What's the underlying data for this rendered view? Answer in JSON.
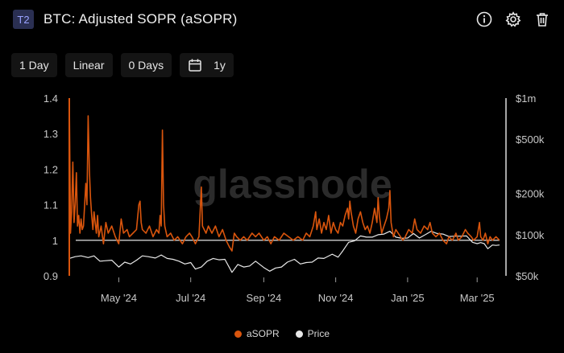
{
  "header": {
    "badge": "T2",
    "title": "BTC: Adjusted SOPR (aSOPR)",
    "icons": [
      "info-icon",
      "gear-icon",
      "trash-icon"
    ]
  },
  "toolbar": {
    "resolution": "1 Day",
    "scale": "Linear",
    "sma": "0 Days",
    "range": "1y"
  },
  "watermark": "glassnode",
  "colors": {
    "sopr": "#d9550d",
    "price": "#e8e8e8",
    "ref_line": "#cfcfcf"
  },
  "chart_data": {
    "type": "line",
    "x_range": [
      "2024-03-20",
      "2025-03-20"
    ],
    "x_ticks": [
      {
        "date": "2024-05-01",
        "label": "May '24"
      },
      {
        "date": "2024-07-01",
        "label": "Jul '24"
      },
      {
        "date": "2024-09-01",
        "label": "Sep '24"
      },
      {
        "date": "2024-11-01",
        "label": "Nov '24"
      },
      {
        "date": "2025-01-01",
        "label": "Jan '25"
      },
      {
        "date": "2025-03-01",
        "label": "Mar '25"
      }
    ],
    "y_left": {
      "range": [
        0.9,
        1.4
      ],
      "ticks": [
        0.9,
        1,
        1.1,
        1.2,
        1.3,
        1.4
      ],
      "labels": [
        "0.9",
        "1",
        "1.1",
        "1.2",
        "1.3",
        "1.4"
      ]
    },
    "y_right": {
      "scale": "log",
      "range": [
        50000,
        1000000
      ],
      "ticks": [
        50000,
        100000,
        200000,
        500000,
        1000000
      ],
      "labels": [
        "$50k",
        "$100k",
        "$200k",
        "$500k",
        "$1m"
      ]
    },
    "reference_line": 1,
    "series": [
      {
        "name": "aSOPR",
        "axis": "left",
        "points": [
          [
            "2024-03-20",
            1.4
          ],
          [
            "2024-03-21",
            1.02
          ],
          [
            "2024-03-22",
            1.08
          ],
          [
            "2024-03-23",
            1.22
          ],
          [
            "2024-03-24",
            1.05
          ],
          [
            "2024-03-25",
            1.1
          ],
          [
            "2024-03-26",
            1.19
          ],
          [
            "2024-03-27",
            1.04
          ],
          [
            "2024-03-28",
            1.07
          ],
          [
            "2024-03-29",
            1.02
          ],
          [
            "2024-03-30",
            1.06
          ],
          [
            "2024-03-31",
            1.03
          ],
          [
            "2024-04-01",
            1.04
          ],
          [
            "2024-04-03",
            1.16
          ],
          [
            "2024-04-04",
            1.1
          ],
          [
            "2024-04-05",
            1.35
          ],
          [
            "2024-04-06",
            1.2
          ],
          [
            "2024-04-07",
            1.12
          ],
          [
            "2024-04-08",
            1.07
          ],
          [
            "2024-04-09",
            1.03
          ],
          [
            "2024-04-10",
            1.08
          ],
          [
            "2024-04-12",
            1.02
          ],
          [
            "2024-04-13",
            1.07
          ],
          [
            "2024-04-14",
            1.01
          ],
          [
            "2024-04-16",
            1.04
          ],
          [
            "2024-04-18",
            0.99
          ],
          [
            "2024-04-20",
            1.05
          ],
          [
            "2024-04-22",
            1.02
          ],
          [
            "2024-04-25",
            1.04
          ],
          [
            "2024-04-28",
            1.01
          ],
          [
            "2024-05-01",
            0.99
          ],
          [
            "2024-05-03",
            1.06
          ],
          [
            "2024-05-05",
            1.02
          ],
          [
            "2024-05-08",
            1.03
          ],
          [
            "2024-05-10",
            1.01
          ],
          [
            "2024-05-13",
            1.02
          ],
          [
            "2024-05-16",
            1.03
          ],
          [
            "2024-05-18",
            1.1
          ],
          [
            "2024-05-19",
            1.11
          ],
          [
            "2024-05-20",
            1.05
          ],
          [
            "2024-05-21",
            1.03
          ],
          [
            "2024-05-24",
            1.02
          ],
          [
            "2024-05-27",
            1.04
          ],
          [
            "2024-05-30",
            1.01
          ],
          [
            "2024-06-02",
            1.03
          ],
          [
            "2024-06-04",
            1.02
          ],
          [
            "2024-06-05",
            1.07
          ],
          [
            "2024-06-06",
            1.04
          ],
          [
            "2024-06-07",
            1.31
          ],
          [
            "2024-06-08",
            1.1
          ],
          [
            "2024-06-09",
            1.04
          ],
          [
            "2024-06-11",
            1.01
          ],
          [
            "2024-06-14",
            1.02
          ],
          [
            "2024-06-17",
            1.0
          ],
          [
            "2024-06-20",
            1.01
          ],
          [
            "2024-06-24",
            0.99
          ],
          [
            "2024-06-27",
            1.01
          ],
          [
            "2024-06-30",
            1.02
          ],
          [
            "2024-07-02",
            1.01
          ],
          [
            "2024-07-05",
            0.99
          ],
          [
            "2024-07-08",
            1.01
          ],
          [
            "2024-07-10",
            1.15
          ],
          [
            "2024-07-11",
            1.04
          ],
          [
            "2024-07-14",
            1.02
          ],
          [
            "2024-07-16",
            1.04
          ],
          [
            "2024-07-19",
            1.02
          ],
          [
            "2024-07-22",
            1.04
          ],
          [
            "2024-07-25",
            1.01
          ],
          [
            "2024-07-28",
            1.03
          ],
          [
            "2024-07-31",
            1.0
          ],
          [
            "2024-08-03",
            0.98
          ],
          [
            "2024-08-05",
            0.97
          ],
          [
            "2024-08-07",
            1.02
          ],
          [
            "2024-08-09",
            1.01
          ],
          [
            "2024-08-12",
            1.0
          ],
          [
            "2024-08-15",
            1.01
          ],
          [
            "2024-08-18",
            1.0
          ],
          [
            "2024-08-22",
            1.02
          ],
          [
            "2024-08-25",
            1.01
          ],
          [
            "2024-08-28",
            1.02
          ],
          [
            "2024-09-01",
            1.0
          ],
          [
            "2024-09-04",
            1.01
          ],
          [
            "2024-09-07",
            0.99
          ],
          [
            "2024-09-10",
            1.01
          ],
          [
            "2024-09-14",
            1.0
          ],
          [
            "2024-09-18",
            1.02
          ],
          [
            "2024-09-22",
            1.01
          ],
          [
            "2024-09-26",
            1.0
          ],
          [
            "2024-09-30",
            1.01
          ],
          [
            "2024-10-04",
            1.0
          ],
          [
            "2024-10-07",
            1.02
          ],
          [
            "2024-10-10",
            1.01
          ],
          [
            "2024-10-13",
            1.04
          ],
          [
            "2024-10-15",
            1.08
          ],
          [
            "2024-10-16",
            1.03
          ],
          [
            "2024-10-18",
            1.06
          ],
          [
            "2024-10-20",
            1.02
          ],
          [
            "2024-10-22",
            1.05
          ],
          [
            "2024-10-24",
            1.03
          ],
          [
            "2024-10-26",
            1.07
          ],
          [
            "2024-10-28",
            1.02
          ],
          [
            "2024-10-30",
            1.05
          ],
          [
            "2024-11-01",
            1.03
          ],
          [
            "2024-11-03",
            1.02
          ],
          [
            "2024-11-05",
            1.05
          ],
          [
            "2024-11-07",
            1.04
          ],
          [
            "2024-11-09",
            1.07
          ],
          [
            "2024-11-11",
            1.09
          ],
          [
            "2024-11-12",
            1.06
          ],
          [
            "2024-11-13",
            1.11
          ],
          [
            "2024-11-14",
            1.08
          ],
          [
            "2024-11-16",
            1.04
          ],
          [
            "2024-11-18",
            1.02
          ],
          [
            "2024-11-20",
            1.06
          ],
          [
            "2024-11-22",
            1.08
          ],
          [
            "2024-11-24",
            1.05
          ],
          [
            "2024-11-26",
            1.03
          ],
          [
            "2024-11-28",
            1.04
          ],
          [
            "2024-11-30",
            1.02
          ],
          [
            "2024-12-02",
            1.05
          ],
          [
            "2024-12-04",
            1.09
          ],
          [
            "2024-12-06",
            1.05
          ],
          [
            "2024-12-07",
            1.12
          ],
          [
            "2024-12-08",
            1.07
          ],
          [
            "2024-12-10",
            1.02
          ],
          [
            "2024-12-12",
            1.04
          ],
          [
            "2024-12-14",
            1.06
          ],
          [
            "2024-12-16",
            1.09
          ],
          [
            "2024-12-17",
            1.14
          ],
          [
            "2024-12-18",
            1.05
          ],
          [
            "2024-12-20",
            1.01
          ],
          [
            "2024-12-22",
            1.03
          ],
          [
            "2024-12-24",
            1.02
          ],
          [
            "2024-12-26",
            1.01
          ],
          [
            "2024-12-28",
            1.0
          ],
          [
            "2024-12-30",
            1.01
          ],
          [
            "2025-01-02",
            1.03
          ],
          [
            "2025-01-05",
            1.02
          ],
          [
            "2025-01-07",
            1.06
          ],
          [
            "2025-01-09",
            1.03
          ],
          [
            "2025-01-12",
            1.02
          ],
          [
            "2025-01-15",
            1.04
          ],
          [
            "2025-01-18",
            1.03
          ],
          [
            "2025-01-20",
            1.05
          ],
          [
            "2025-01-22",
            1.02
          ],
          [
            "2025-01-25",
            1.01
          ],
          [
            "2025-01-28",
            1.02
          ],
          [
            "2025-01-31",
            1.0
          ],
          [
            "2025-02-03",
            0.99
          ],
          [
            "2025-02-05",
            1.01
          ],
          [
            "2025-02-08",
            1.0
          ],
          [
            "2025-02-11",
            1.02
          ],
          [
            "2025-02-13",
            1.0
          ],
          [
            "2025-02-16",
            1.01
          ],
          [
            "2025-02-19",
            1.03
          ],
          [
            "2025-02-21",
            1.02
          ],
          [
            "2025-02-24",
            1.01
          ],
          [
            "2025-02-26",
            1.0
          ],
          [
            "2025-03-01",
            1.01
          ],
          [
            "2025-03-03",
            1.05
          ],
          [
            "2025-03-04",
            1.01
          ],
          [
            "2025-03-06",
            1.0
          ],
          [
            "2025-03-08",
            1.02
          ],
          [
            "2025-03-10",
            0.99
          ],
          [
            "2025-03-12",
            1.01
          ],
          [
            "2025-03-14",
            1.0
          ],
          [
            "2025-03-17",
            1.01
          ],
          [
            "2025-03-20",
            1.0
          ]
        ]
      },
      {
        "name": "Price",
        "axis": "right",
        "points": [
          [
            "2024-03-20",
            67000
          ],
          [
            "2024-03-25",
            69000
          ],
          [
            "2024-03-30",
            70000
          ],
          [
            "2024-04-05",
            68000
          ],
          [
            "2024-04-10",
            70000
          ],
          [
            "2024-04-15",
            64000
          ],
          [
            "2024-04-20",
            64500
          ],
          [
            "2024-04-25",
            65000
          ],
          [
            "2024-05-01",
            58000
          ],
          [
            "2024-05-06",
            63000
          ],
          [
            "2024-05-11",
            61000
          ],
          [
            "2024-05-16",
            65000
          ],
          [
            "2024-05-21",
            70000
          ],
          [
            "2024-05-26",
            69000
          ],
          [
            "2024-06-01",
            67500
          ],
          [
            "2024-06-06",
            71000
          ],
          [
            "2024-06-11",
            67000
          ],
          [
            "2024-06-16",
            66000
          ],
          [
            "2024-06-21",
            64000
          ],
          [
            "2024-06-26",
            61000
          ],
          [
            "2024-07-01",
            62500
          ],
          [
            "2024-07-05",
            56000
          ],
          [
            "2024-07-10",
            58000
          ],
          [
            "2024-07-15",
            64000
          ],
          [
            "2024-07-20",
            67000
          ],
          [
            "2024-07-25",
            65500
          ],
          [
            "2024-07-30",
            66000
          ],
          [
            "2024-08-05",
            53000
          ],
          [
            "2024-08-10",
            60500
          ],
          [
            "2024-08-15",
            58000
          ],
          [
            "2024-08-20",
            59000
          ],
          [
            "2024-08-25",
            64000
          ],
          [
            "2024-09-01",
            57500
          ],
          [
            "2024-09-06",
            54000
          ],
          [
            "2024-09-11",
            57000
          ],
          [
            "2024-09-16",
            58000
          ],
          [
            "2024-09-21",
            63000
          ],
          [
            "2024-09-27",
            66000
          ],
          [
            "2024-10-02",
            61000
          ],
          [
            "2024-10-07",
            62500
          ],
          [
            "2024-10-12",
            63000
          ],
          [
            "2024-10-17",
            67500
          ],
          [
            "2024-10-22",
            67000
          ],
          [
            "2024-10-29",
            72000
          ],
          [
            "2024-11-03",
            68500
          ],
          [
            "2024-11-07",
            76000
          ],
          [
            "2024-11-12",
            88000
          ],
          [
            "2024-11-17",
            90000
          ],
          [
            "2024-11-22",
            98000
          ],
          [
            "2024-11-27",
            96000
          ],
          [
            "2024-12-02",
            96000
          ],
          [
            "2024-12-07",
            100000
          ],
          [
            "2024-12-12",
            101000
          ],
          [
            "2024-12-17",
            106000
          ],
          [
            "2024-12-22",
            96000
          ],
          [
            "2024-12-27",
            94000
          ],
          [
            "2025-01-01",
            94500
          ],
          [
            "2025-01-06",
            102000
          ],
          [
            "2025-01-11",
            94500
          ],
          [
            "2025-01-16",
            100000
          ],
          [
            "2025-01-21",
            106000
          ],
          [
            "2025-01-26",
            102000
          ],
          [
            "2025-01-31",
            101000
          ],
          [
            "2025-02-05",
            97000
          ],
          [
            "2025-02-10",
            97500
          ],
          [
            "2025-02-15",
            97500
          ],
          [
            "2025-02-20",
            98000
          ],
          [
            "2025-02-25",
            88000
          ],
          [
            "2025-03-01",
            86000
          ],
          [
            "2025-03-04",
            87500
          ],
          [
            "2025-03-07",
            86000
          ],
          [
            "2025-03-10",
            79000
          ],
          [
            "2025-03-14",
            84000
          ],
          [
            "2025-03-17",
            83500
          ],
          [
            "2025-03-20",
            84000
          ]
        ]
      }
    ]
  },
  "legend": [
    {
      "label": "aSOPR",
      "color": "#d9550d"
    },
    {
      "label": "Price",
      "color": "#e8e8e8"
    }
  ]
}
